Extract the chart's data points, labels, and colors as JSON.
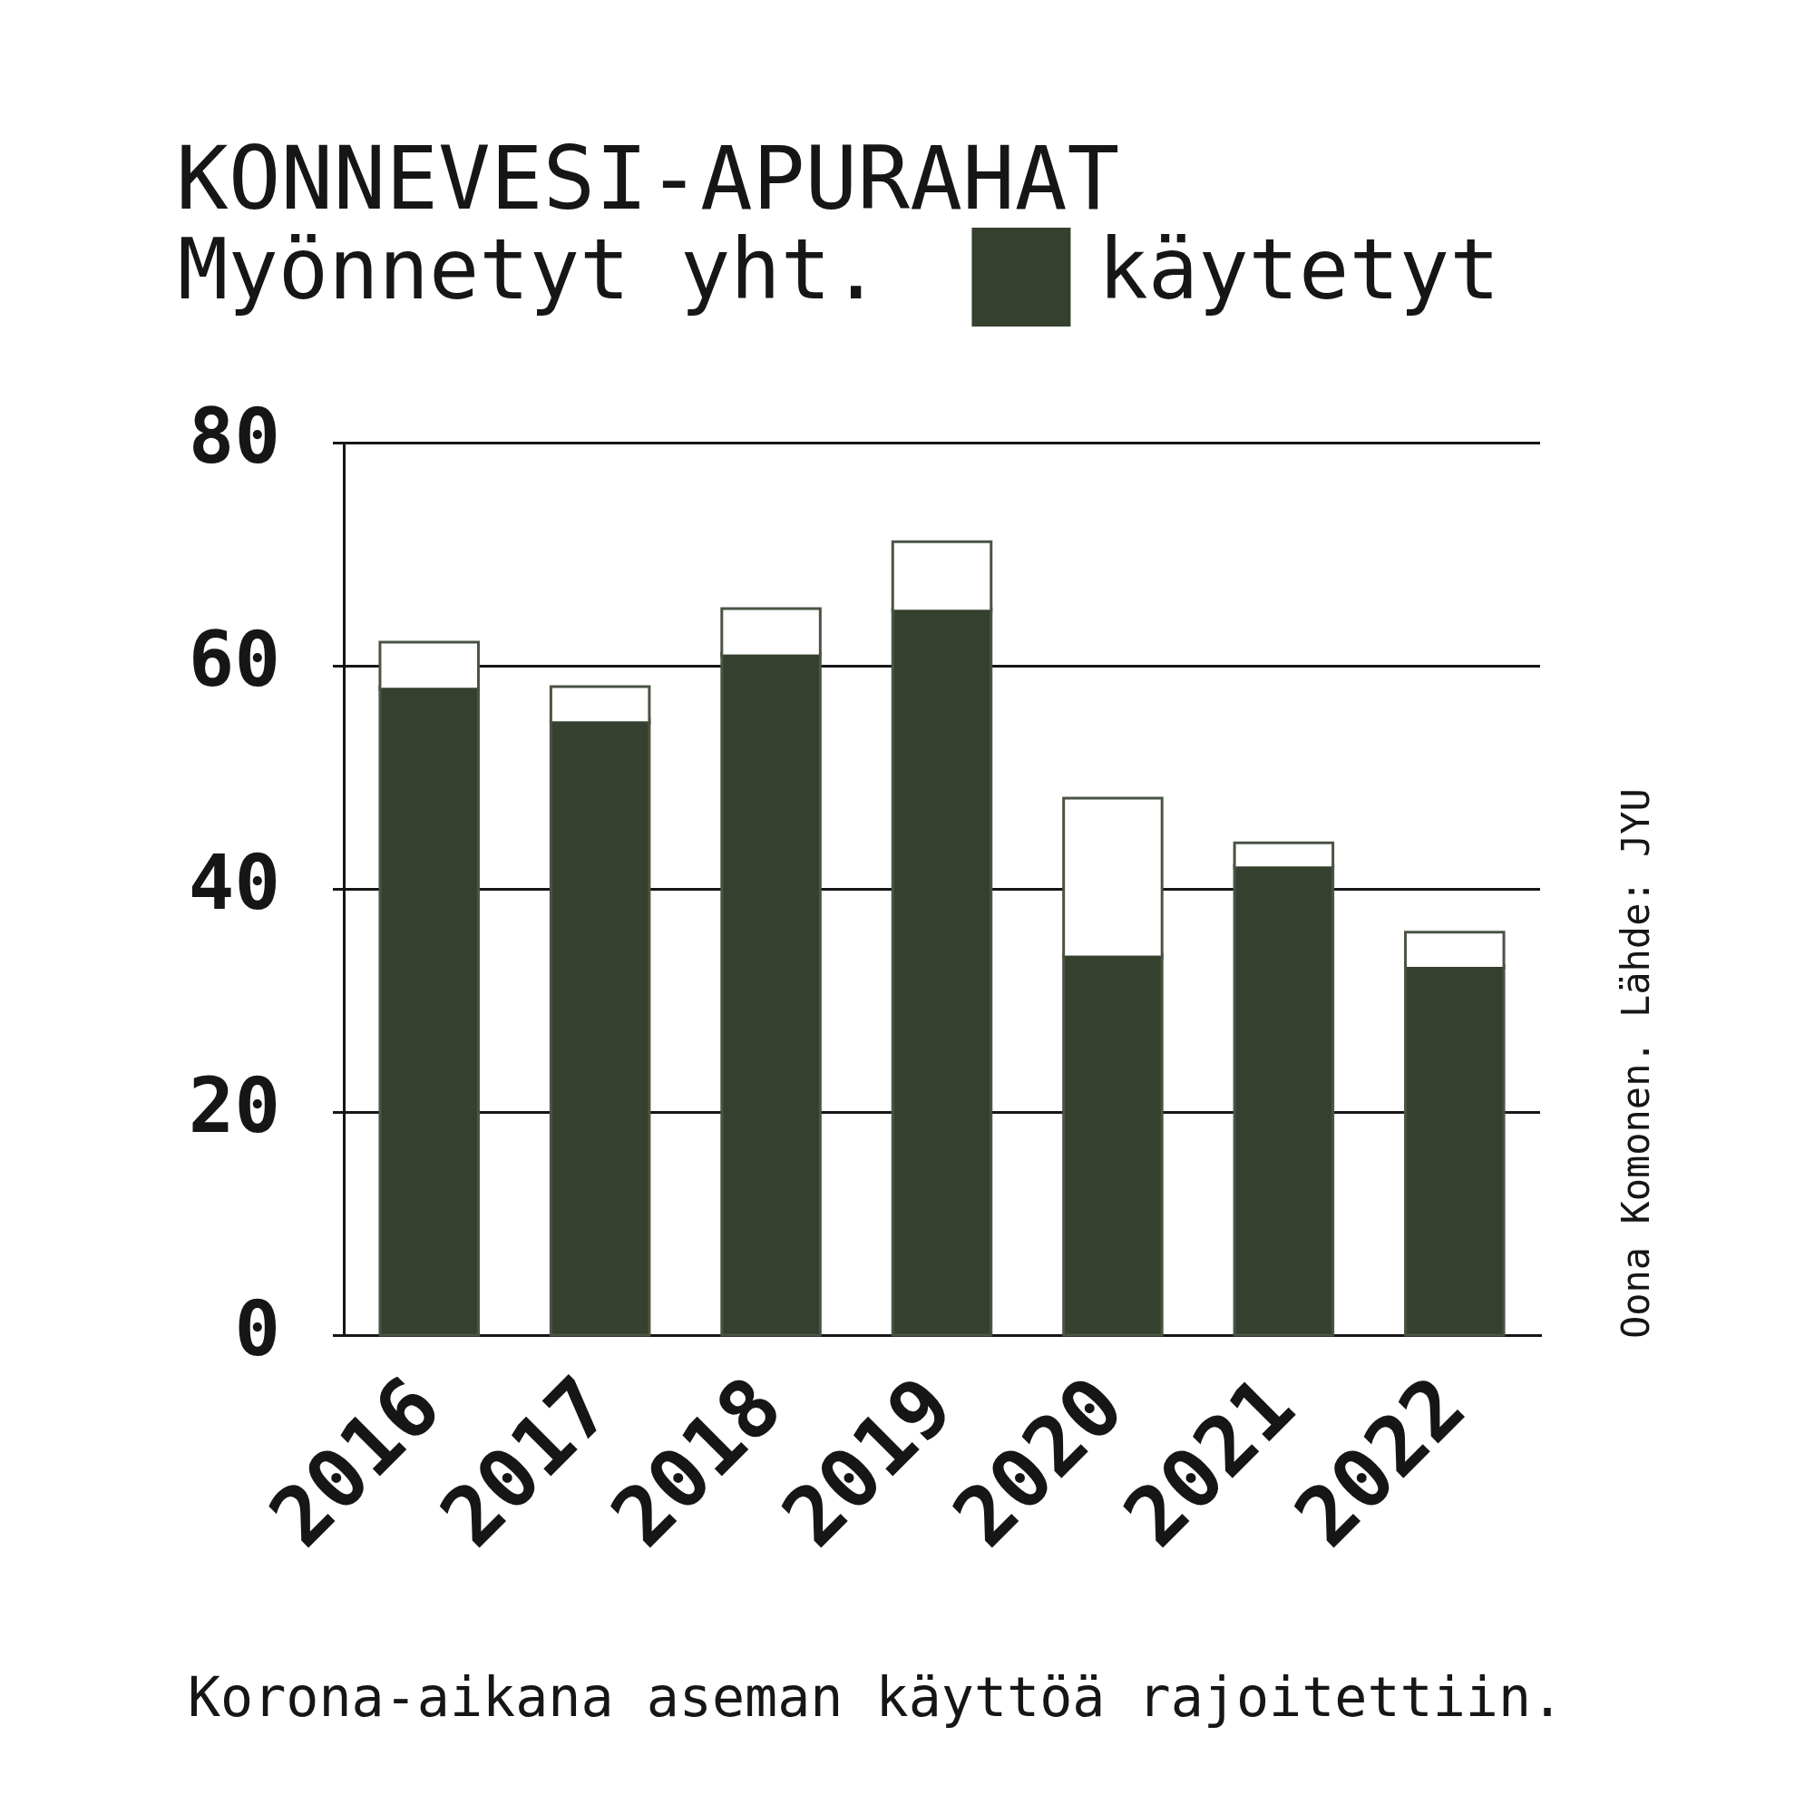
{
  "chart_data": {
    "type": "bar",
    "title": "KONNEVESI-APURAHAT",
    "subtitle": "Myönnetyt yht.",
    "categories": [
      "2016",
      "2017",
      "2018",
      "2019",
      "2020",
      "2021",
      "2022"
    ],
    "series": [
      {
        "name": "käytetyt",
        "color": "#36402f",
        "values": [
          58,
          55,
          61,
          65,
          34,
          42,
          33
        ]
      },
      {
        "color": "#ffffff",
        "values": [
          4,
          3,
          4,
          6,
          14,
          2,
          3
        ]
      }
    ],
    "stacked": true,
    "ylim": [
      0,
      80
    ],
    "yticks": [
      0,
      20,
      40,
      60,
      80
    ],
    "grid": "y",
    "legend": "top",
    "annotations": [
      "Korona-aikana aseman käyttöä rajoitettiin.",
      "Oona Komonen. Lähde: JYU"
    ]
  }
}
